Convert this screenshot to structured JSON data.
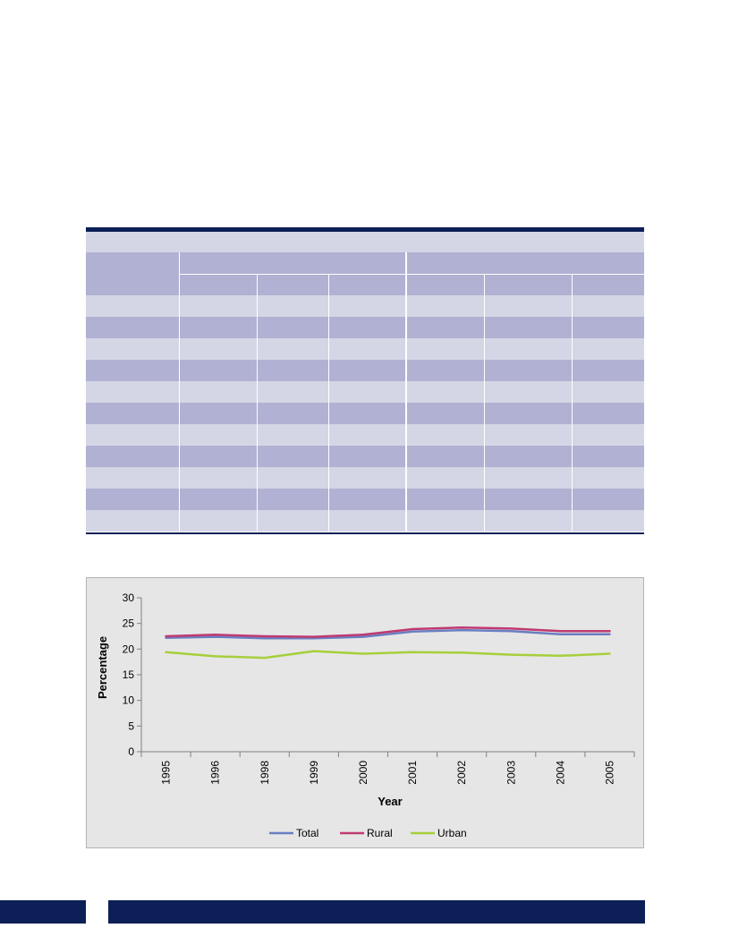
{
  "colors": {
    "navy": "#0c1f57",
    "row_light": "#d4d6e6",
    "row_dark": "#b1b1d3",
    "chart_bg": "#e6e6e6"
  },
  "table": {
    "column_count": 7,
    "body_row_count": 11
  },
  "chart_data": {
    "type": "line",
    "title": "",
    "categories": [
      "1995",
      "1996",
      "1998",
      "1999",
      "2000",
      "2001",
      "2002",
      "2003",
      "2004",
      "2005"
    ],
    "xlabel": "Year",
    "ylabel": "Percentage",
    "ylim": [
      0,
      30
    ],
    "yticks": [
      "0",
      "5",
      "10",
      "15",
      "20",
      "25",
      "30"
    ],
    "grid": false,
    "legend_position": "bottom",
    "series": [
      {
        "name": "Total",
        "color": "#6a7fc1",
        "values": [
          22.2,
          22.4,
          22.1,
          22.1,
          22.4,
          23.4,
          23.7,
          23.5,
          22.9,
          22.9
        ]
      },
      {
        "name": "Rural",
        "color": "#c03a72",
        "values": [
          22.5,
          22.8,
          22.5,
          22.4,
          22.8,
          23.9,
          24.2,
          24.0,
          23.5,
          23.5
        ]
      },
      {
        "name": "Urban",
        "color": "#a6cf3c",
        "values": [
          19.4,
          18.6,
          18.3,
          19.6,
          19.1,
          19.4,
          19.3,
          18.9,
          18.7,
          19.1
        ]
      }
    ]
  }
}
